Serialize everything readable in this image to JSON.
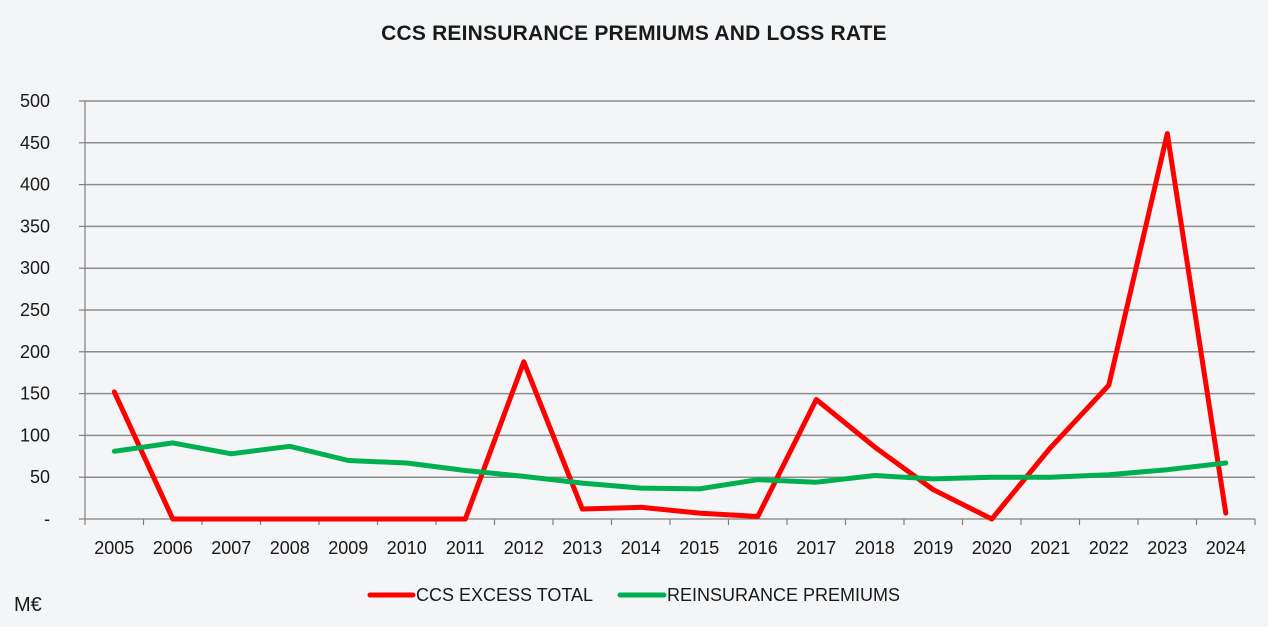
{
  "unit_label": "M€",
  "chart_data": {
    "type": "line",
    "title": "CCS REINSURANCE PREMIUMS AND LOSS RATE",
    "xlabel": "",
    "ylabel": "",
    "categories": [
      "2005",
      "2006",
      "2007",
      "2008",
      "2009",
      "2010",
      "2011",
      "2012",
      "2013",
      "2014",
      "2015",
      "2016",
      "2017",
      "2018",
      "2019",
      "2020",
      "2021",
      "2022",
      "2023",
      "2024"
    ],
    "ylim": [
      0,
      500
    ],
    "yticks": [
      0,
      50,
      100,
      150,
      200,
      250,
      300,
      350,
      400,
      450,
      500
    ],
    "ytick_labels": [
      "-",
      "50",
      "100",
      "150",
      "200",
      "250",
      "300",
      "350",
      "400",
      "450",
      "500"
    ],
    "grid": true,
    "legend_position": "bottom",
    "series": [
      {
        "name": "CCS EXCESS TOTAL",
        "color": "#ff0000",
        "values": [
          152,
          0,
          0,
          0,
          0,
          0,
          0,
          188,
          12,
          14,
          7,
          3,
          143,
          86,
          35,
          0,
          85,
          160,
          461,
          7
        ]
      },
      {
        "name": "REINSURANCE PREMIUMS",
        "color": "#00b050",
        "values": [
          81,
          91,
          78,
          87,
          70,
          67,
          58,
          51,
          43,
          37,
          36,
          47,
          44,
          52,
          48,
          50,
          50,
          53,
          59,
          67
        ]
      }
    ]
  }
}
